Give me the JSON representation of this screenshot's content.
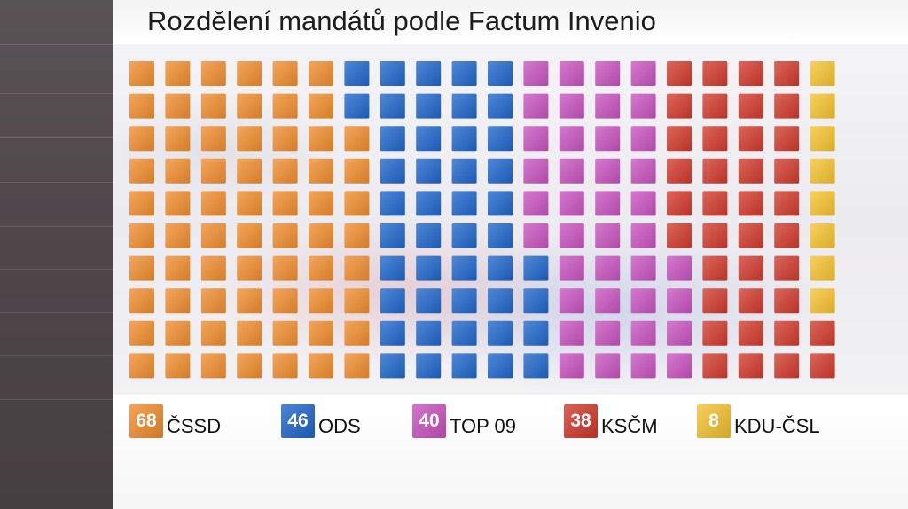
{
  "title": "Rozdělení mandátů podle Factum Invenio",
  "chart_data": {
    "type": "waffle",
    "title": "Rozdělení mandátů podle Factum Invenio",
    "total_seats": 200,
    "series": [
      {
        "name": "ČSSD",
        "label": "68",
        "value": 68,
        "color": "#f18d2e"
      },
      {
        "name": "ODS",
        "label": "46",
        "value": 46,
        "color": "#1f66cc"
      },
      {
        "name": "TOP 09",
        "label": "40",
        "value": 40,
        "color": "#c953c0"
      },
      {
        "name": "KSČM",
        "label": "38",
        "value": 38,
        "color": "#d23a2c"
      },
      {
        "name": "KDU-ČSL",
        "label": "8",
        "value": 8,
        "color": "#f6c330"
      }
    ],
    "legend_position": "bottom"
  }
}
